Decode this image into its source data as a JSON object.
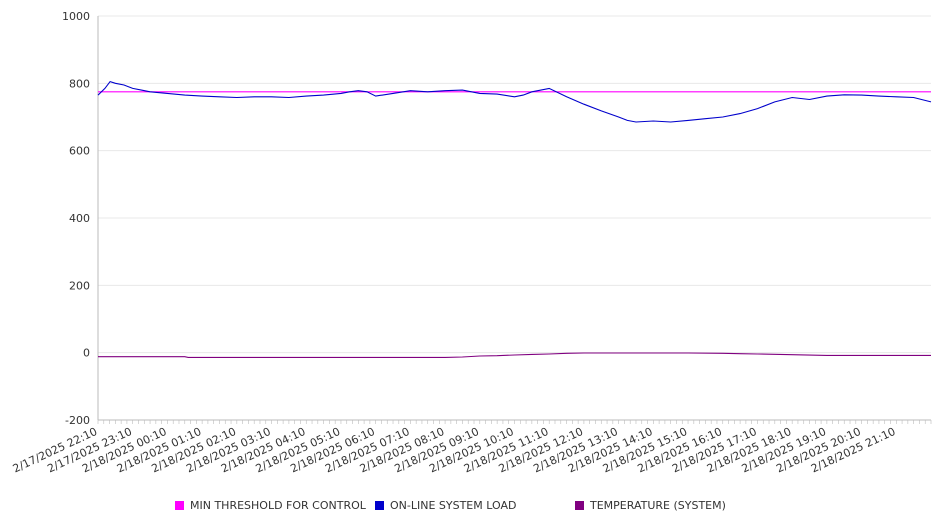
{
  "chart_data": {
    "type": "line",
    "title": "",
    "xlabel": "",
    "ylabel": "",
    "ylim": [
      -200,
      1000
    ],
    "y_ticks": [
      -200,
      0,
      200,
      400,
      600,
      800,
      1000
    ],
    "x_tick_labels": [
      "2/17/2025 22:10",
      "2/17/2025 23:10",
      "2/18/2025 00:10",
      "2/18/2025 01:10",
      "2/18/2025 02:10",
      "2/18/2025 03:10",
      "2/18/2025 04:10",
      "2/18/2025 05:10",
      "2/18/2025 06:10",
      "2/18/2025 07:10",
      "2/18/2025 08:10",
      "2/18/2025 09:10",
      "2/18/2025 10:10",
      "2/18/2025 11:10",
      "2/18/2025 12:10",
      "2/18/2025 13:10",
      "2/18/2025 14:10",
      "2/18/2025 15:10",
      "2/18/2025 16:10",
      "2/18/2025 17:10",
      "2/18/2025 18:10",
      "2/18/2025 19:10",
      "2/18/2025 20:10",
      "2/18/2025 21:10"
    ],
    "x_hours_range": [
      0,
      24
    ],
    "grid": true,
    "legend_position": "bottom",
    "series": [
      {
        "name": "MIN THRESHOLD FOR CONTROL",
        "color": "#ff00ff",
        "x_hours": [
          0,
          24
        ],
        "values": [
          775,
          775
        ]
      },
      {
        "name": "ON-LINE SYSTEM LOAD",
        "color": "#0000cc",
        "x_hours": [
          0,
          0.2,
          0.35,
          0.5,
          0.75,
          1.0,
          1.25,
          1.5,
          2.0,
          2.5,
          3.0,
          3.5,
          4.0,
          4.5,
          5.0,
          5.5,
          6.0,
          6.5,
          7.0,
          7.25,
          7.5,
          7.75,
          8.0,
          8.5,
          9.0,
          9.5,
          10.0,
          10.5,
          11.0,
          11.5,
          12.0,
          12.25,
          12.5,
          13.0,
          13.5,
          14.0,
          14.5,
          15.0,
          15.25,
          15.5,
          16.0,
          16.5,
          17.0,
          17.5,
          18.0,
          18.5,
          19.0,
          19.5,
          20.0,
          20.5,
          21.0,
          21.5,
          22.0,
          22.5,
          23.0,
          23.5,
          24.0
        ],
        "values": [
          765,
          785,
          805,
          800,
          795,
          785,
          780,
          775,
          770,
          765,
          762,
          760,
          758,
          760,
          760,
          758,
          762,
          765,
          770,
          775,
          778,
          775,
          762,
          770,
          778,
          775,
          778,
          780,
          770,
          768,
          760,
          765,
          775,
          785,
          760,
          738,
          718,
          700,
          690,
          685,
          688,
          685,
          690,
          695,
          700,
          710,
          725,
          745,
          758,
          752,
          762,
          766,
          765,
          762,
          760,
          758,
          745
        ]
      },
      {
        "name": "TEMPERATURE (SYSTEM)",
        "color": "#800080",
        "x_hours": [
          0,
          2.5,
          2.6,
          10.0,
          10.5,
          11.0,
          11.5,
          12.0,
          12.5,
          13.0,
          13.5,
          14.0,
          15.0,
          15.5,
          16.0,
          17.0,
          18.0,
          18.5,
          19.0,
          20.0,
          21.0,
          21.5,
          22.0,
          23.0,
          24.0
        ],
        "values": [
          -12,
          -12,
          -14,
          -14,
          -13,
          -10,
          -9,
          -7,
          -5,
          -4,
          -2,
          -1,
          -1,
          -1,
          -1,
          -1,
          -2,
          -3,
          -4,
          -6,
          -8,
          -8,
          -8,
          -8,
          -8
        ]
      }
    ]
  }
}
